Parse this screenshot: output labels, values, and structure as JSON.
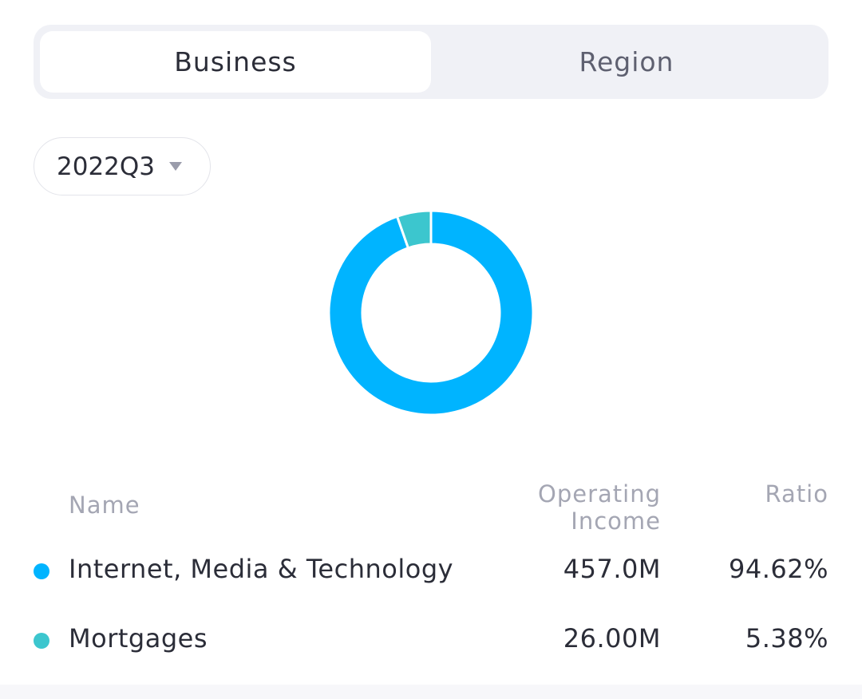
{
  "tabs": [
    {
      "label": "Business",
      "active": true
    },
    {
      "label": "Region",
      "active": false
    }
  ],
  "period": {
    "selected": "2022Q3"
  },
  "table": {
    "headers": {
      "name": "Name",
      "income_line1": "Operating",
      "income_line2": "Income",
      "ratio": "Ratio"
    },
    "rows": [
      {
        "name": "Internet, Media & Technology",
        "income": "457.0M",
        "ratio": "94.62%",
        "color": "#00b4ff"
      },
      {
        "name": "Mortgages",
        "income": "26.00M",
        "ratio": "5.38%",
        "color": "#3cc6ce"
      }
    ]
  },
  "chart_data": {
    "type": "pie",
    "variant": "donut",
    "categories": [
      "Internet, Media & Technology",
      "Mortgages"
    ],
    "values": [
      94.62,
      5.38
    ],
    "colors": [
      "#00b4ff",
      "#3cc6ce"
    ]
  }
}
